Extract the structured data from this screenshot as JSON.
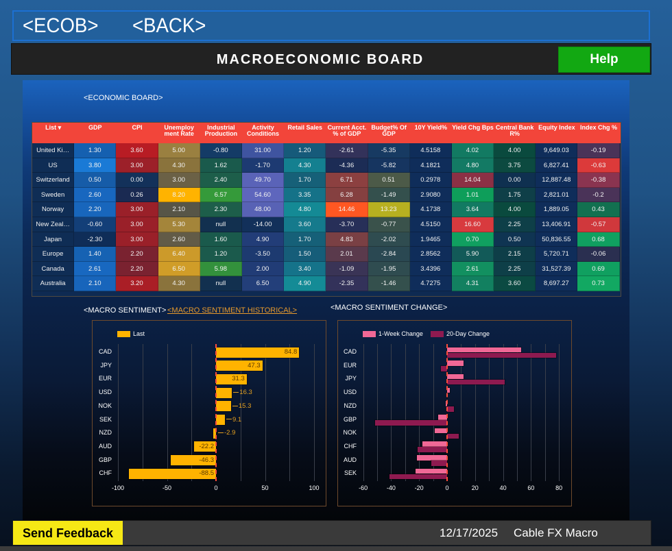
{
  "nav": {
    "ecob_label": "<ECOB>",
    "back_label": "<BACK>"
  },
  "header": {
    "title": "MACROECONOMIC BOARD",
    "help_label": "Help"
  },
  "economic_board": {
    "label": "<ECONOMIC BOARD>",
    "columns": [
      "List ▾",
      "GDP",
      "CPI",
      "Unemploy ment Rate",
      "Industrial Production",
      "Activity Conditions",
      "Retail Sales",
      "Current Acct. % of GDP",
      "Budget% Of GDP",
      "10Y Yield%",
      "Yield Chg Bps",
      "Central Bank R%",
      "Equity Index",
      "Index Chg %"
    ],
    "header_color": "#f2453a",
    "rows": [
      {
        "country": "United Ki…",
        "cells": [
          {
            "v": "1.30",
            "c": "#1560b0"
          },
          {
            "v": "3.60",
            "c": "#b81c24"
          },
          {
            "v": "5.00",
            "c": "#9a8040"
          },
          {
            "v": "-0.80",
            "c": "#143b66"
          },
          {
            "v": "31.00",
            "c": "#3f54a0"
          },
          {
            "v": "1.20",
            "c": "#165a7a"
          },
          {
            "v": "-2.61",
            "c": "#33325a"
          },
          {
            "v": "-5.35",
            "c": "#173a62"
          },
          {
            "v": "4.5158",
            "c": "#0f2d5a"
          },
          {
            "v": "4.02",
            "c": "#127a62"
          },
          {
            "v": "4.00",
            "c": "#0a4a3e"
          },
          {
            "v": "9,649.03",
            "c": "#0f2d5a"
          },
          {
            "v": "-0.19",
            "c": "#4a3358"
          }
        ]
      },
      {
        "country": "US",
        "cells": [
          {
            "v": "3.80",
            "c": "#1a7ad6"
          },
          {
            "v": "3.00",
            "c": "#9c2029"
          },
          {
            "v": "4.30",
            "c": "#8a733c"
          },
          {
            "v": "1.62",
            "c": "#1a5a4c"
          },
          {
            "v": "-1.70",
            "c": "#1d3a72"
          },
          {
            "v": "4.30",
            "c": "#148090"
          },
          {
            "v": "-4.36",
            "c": "#1c2c55"
          },
          {
            "v": "-5.82",
            "c": "#163560"
          },
          {
            "v": "4.1821",
            "c": "#0f2d5a"
          },
          {
            "v": "4.80",
            "c": "#137a64"
          },
          {
            "v": "3.75",
            "c": "#0c4a40"
          },
          {
            "v": "6,827.41",
            "c": "#0f2d5a"
          },
          {
            "v": "-0.63",
            "c": "#dc3a3a"
          }
        ]
      },
      {
        "country": "Switzerland",
        "cells": [
          {
            "v": "0.50",
            "c": "#165ca8"
          },
          {
            "v": "0.00",
            "c": "#13315a"
          },
          {
            "v": "3.00",
            "c": "#6b6146"
          },
          {
            "v": "2.40",
            "c": "#1d5e4a"
          },
          {
            "v": "49.70",
            "c": "#5a63b8"
          },
          {
            "v": "1.70",
            "c": "#166078"
          },
          {
            "v": "6.71",
            "c": "#8c4040"
          },
          {
            "v": "0.51",
            "c": "#4c5a48"
          },
          {
            "v": "0.2978",
            "c": "#0f2d5a"
          },
          {
            "v": "14.04",
            "c": "#8c3045"
          },
          {
            "v": "0.00",
            "c": "#0f3050"
          },
          {
            "v": "12,887.48",
            "c": "#0f2d5a"
          },
          {
            "v": "-0.38",
            "c": "#8a3450"
          }
        ]
      },
      {
        "country": "Sweden",
        "cells": [
          {
            "v": "2.60",
            "c": "#1867bf"
          },
          {
            "v": "0.26",
            "c": "#1a2a52"
          },
          {
            "v": "8.20",
            "c": "#ffb300"
          },
          {
            "v": "6.57",
            "c": "#359a3a"
          },
          {
            "v": "54.60",
            "c": "#5e66bd"
          },
          {
            "v": "3.35",
            "c": "#157288"
          },
          {
            "v": "6.28",
            "c": "#854040"
          },
          {
            "v": "-1.49",
            "c": "#34504d"
          },
          {
            "v": "2.9080",
            "c": "#0f2d5a"
          },
          {
            "v": "1.01",
            "c": "#0e9e5a"
          },
          {
            "v": "1.75",
            "c": "#0f3f48"
          },
          {
            "v": "2,821.01",
            "c": "#0f2d5a"
          },
          {
            "v": "-0.2",
            "c": "#4a3358"
          }
        ]
      },
      {
        "country": "Norway",
        "cells": [
          {
            "v": "2.20",
            "c": "#1866bc"
          },
          {
            "v": "3.00",
            "c": "#9a2029"
          },
          {
            "v": "2.10",
            "c": "#575547"
          },
          {
            "v": "2.30",
            "c": "#1d5e4a"
          },
          {
            "v": "48.00",
            "c": "#5862b5"
          },
          {
            "v": "4.80",
            "c": "#148a95"
          },
          {
            "v": "14.46",
            "c": "#ff5722"
          },
          {
            "v": "13.23",
            "c": "#b7b020"
          },
          {
            "v": "4.1738",
            "c": "#0f2d5a"
          },
          {
            "v": "3.64",
            "c": "#127a62"
          },
          {
            "v": "4.00",
            "c": "#0a4a3e"
          },
          {
            "v": "1,889.05",
            "c": "#0f2d5a"
          },
          {
            "v": "0.43",
            "c": "#127050"
          }
        ]
      },
      {
        "country": "New Zeal…",
        "cells": [
          {
            "v": "-0.60",
            "c": "#133f78"
          },
          {
            "v": "3.00",
            "c": "#9a2029"
          },
          {
            "v": "5.30",
            "c": "#a4853a"
          },
          {
            "v": "null",
            "c": "#12304f"
          },
          {
            "v": "-14.00",
            "c": "#12305a"
          },
          {
            "v": "3.60",
            "c": "#157a8c"
          },
          {
            "v": "-3.70",
            "c": "#272f58"
          },
          {
            "v": "-0.77",
            "c": "#3a524b"
          },
          {
            "v": "4.5150",
            "c": "#0f2d5a"
          },
          {
            "v": "16.60",
            "c": "#d83a3e"
          },
          {
            "v": "2.25",
            "c": "#0e3f48"
          },
          {
            "v": "13,406.91",
            "c": "#0f2d5a"
          },
          {
            "v": "-0.57",
            "c": "#d0383c"
          }
        ]
      },
      {
        "country": "Japan",
        "cells": [
          {
            "v": "-2.30",
            "c": "#0f2d58"
          },
          {
            "v": "3.00",
            "c": "#9a2029"
          },
          {
            "v": "2.60",
            "c": "#625b47"
          },
          {
            "v": "1.60",
            "c": "#1a5a4c"
          },
          {
            "v": "4.90",
            "c": "#223d78"
          },
          {
            "v": "1.70",
            "c": "#166078"
          },
          {
            "v": "4.83",
            "c": "#7a4044"
          },
          {
            "v": "-2.02",
            "c": "#2f4c50"
          },
          {
            "v": "1.9465",
            "c": "#0f2d5a"
          },
          {
            "v": "0.70",
            "c": "#10a060"
          },
          {
            "v": "0.50",
            "c": "#0f3452"
          },
          {
            "v": "50,836.55",
            "c": "#0f2d5a"
          },
          {
            "v": "0.68",
            "c": "#10a060"
          }
        ]
      },
      {
        "country": "Europe",
        "cells": [
          {
            "v": "1.40",
            "c": "#1662b3"
          },
          {
            "v": "2.20",
            "c": "#7a2230"
          },
          {
            "v": "6.40",
            "c": "#cc9a2a"
          },
          {
            "v": "1.20",
            "c": "#1b5a4c"
          },
          {
            "v": "-3.50",
            "c": "#1d3a70"
          },
          {
            "v": "1.50",
            "c": "#165d79"
          },
          {
            "v": "2.01",
            "c": "#5a3a4c"
          },
          {
            "v": "-2.84",
            "c": "#2a4852"
          },
          {
            "v": "2.8562",
            "c": "#0f2d5a"
          },
          {
            "v": "5.90",
            "c": "#125a58"
          },
          {
            "v": "2.15",
            "c": "#0e3e48"
          },
          {
            "v": "5,720.71",
            "c": "#0f2d5a"
          },
          {
            "v": "-0.06",
            "c": "#2a2f50"
          }
        ]
      },
      {
        "country": "Canada",
        "cells": [
          {
            "v": "2.61",
            "c": "#1868c0"
          },
          {
            "v": "2.20",
            "c": "#7a2230"
          },
          {
            "v": "6.50",
            "c": "#d09d28"
          },
          {
            "v": "5.98",
            "c": "#33913c"
          },
          {
            "v": "2.00",
            "c": "#213c76"
          },
          {
            "v": "3.40",
            "c": "#15738a"
          },
          {
            "v": "-1.09",
            "c": "#3a3456"
          },
          {
            "v": "-1.95",
            "c": "#2f4c50"
          },
          {
            "v": "3.4396",
            "c": "#0f2d5a"
          },
          {
            "v": "2.61",
            "c": "#129060"
          },
          {
            "v": "2.25",
            "c": "#0e3f48"
          },
          {
            "v": "31,527.39",
            "c": "#0f2d5a"
          },
          {
            "v": "0.69",
            "c": "#10a060"
          }
        ]
      },
      {
        "country": "Australia",
        "cells": [
          {
            "v": "2.10",
            "c": "#1865bb"
          },
          {
            "v": "3.20",
            "c": "#aa1e26"
          },
          {
            "v": "4.30",
            "c": "#8a733c"
          },
          {
            "v": "null",
            "c": "#12304f"
          },
          {
            "v": "6.50",
            "c": "#233f7a"
          },
          {
            "v": "4.90",
            "c": "#148b96"
          },
          {
            "v": "-2.35",
            "c": "#33325a"
          },
          {
            "v": "-1.46",
            "c": "#34504d"
          },
          {
            "v": "4.7275",
            "c": "#0f2d5a"
          },
          {
            "v": "4.31",
            "c": "#128060"
          },
          {
            "v": "3.60",
            "c": "#0b4a42"
          },
          {
            "v": "8,697.27",
            "c": "#0f2d5a"
          },
          {
            "v": "0.73",
            "c": "#12a862"
          }
        ]
      }
    ]
  },
  "sentiment": {
    "label": "<MACRO SENTIMENT>",
    "historical_link": "<MACRO SENTIMENT HISTORICAL>",
    "change_label": "<MACRO SENTIMENT CHANGE>"
  },
  "colors": {
    "last": "#ffb300",
    "week": "#f06896",
    "day20": "#8e1a50",
    "zero_line": "#ff4d3a",
    "link": "#e89a2c",
    "help_green": "#12a812",
    "feedback_yellow": "#f6e815"
  },
  "chart_data": [
    {
      "type": "bar",
      "orientation": "horizontal",
      "title": "Macro Sentiment",
      "legend": [
        "Last"
      ],
      "categories": [
        "CAD",
        "JPY",
        "EUR",
        "USD",
        "NOK",
        "SEK",
        "NZD",
        "AUD",
        "GBP",
        "CHF"
      ],
      "series": [
        {
          "name": "Last",
          "values": [
            84.8,
            47.3,
            31.3,
            16.3,
            15.3,
            9.1,
            -2.9,
            -22.2,
            -46.3,
            -88.5
          ]
        }
      ],
      "xlim": [
        -100,
        100
      ],
      "xticks": [
        -100,
        -50,
        0,
        50,
        100
      ],
      "grid_step": 25,
      "data_labels": true,
      "legend_position": "top-left"
    },
    {
      "type": "bar",
      "orientation": "horizontal",
      "title": "Macro Sentiment Change",
      "legend": [
        "1-Week Change",
        "20-Day Change"
      ],
      "categories": [
        "CAD",
        "EUR",
        "JPY",
        "USD",
        "NZD",
        "GBP",
        "NOK",
        "CHF",
        "AUD",
        "SEK"
      ],
      "series": [
        {
          "name": "1-Week Change",
          "values": [
            53.0,
            12.0,
            12.0,
            2.0,
            -1.0,
            -6.2,
            -8.7,
            -17.8,
            -21.8,
            -22.7
          ]
        },
        {
          "name": "20-Day Change",
          "values": [
            78.0,
            -4.4,
            41.0,
            0.0,
            5.0,
            -51.7,
            8.5,
            -21.3,
            -11.1,
            -41.2
          ]
        }
      ],
      "xlim": [
        -60,
        80
      ],
      "xticks": [
        -60,
        -40,
        -20,
        0,
        20,
        40,
        60,
        80
      ],
      "grid_step": 10,
      "data_labels": false,
      "legend_position": "top-left"
    }
  ],
  "footer": {
    "feedback_label": "Send Feedback",
    "date": "12/17/2025",
    "brand": "Cable FX Macro"
  }
}
